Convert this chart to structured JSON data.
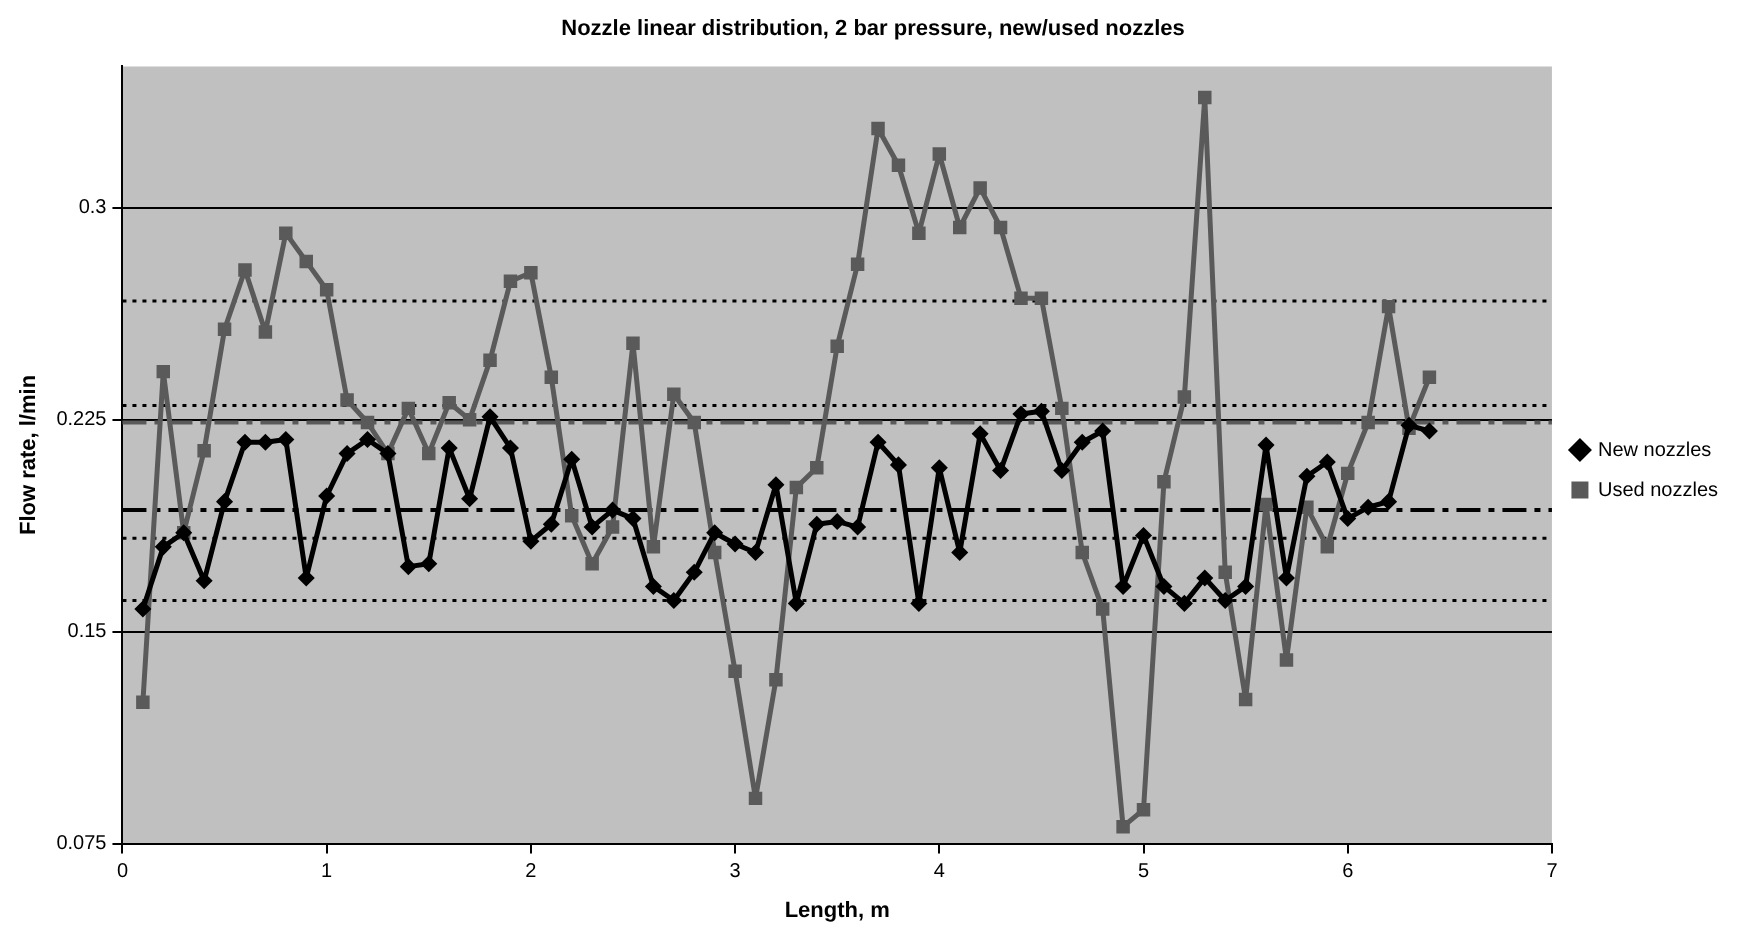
{
  "chart_data": {
    "type": "line",
    "title": "Nozzle linear distribution, 2 bar pressure, new/used nozzles",
    "xlabel": "Length, m",
    "ylabel": "Flow rate, l/min",
    "x": [
      0.1,
      0.2,
      0.3,
      0.4,
      0.5,
      0.6,
      0.7,
      0.8,
      0.9,
      1.0,
      1.1,
      1.2,
      1.3,
      1.4,
      1.5,
      1.6,
      1.7,
      1.8,
      1.9,
      2.0,
      2.1,
      2.2,
      2.3,
      2.4,
      2.5,
      2.6,
      2.7,
      2.8,
      2.9,
      3.0,
      3.1,
      3.2,
      3.3,
      3.4,
      3.5,
      3.6,
      3.7,
      3.8,
      3.9,
      4.0,
      4.1,
      4.2,
      4.3,
      4.4,
      4.5,
      4.6,
      4.7,
      4.8,
      4.9,
      5.0,
      5.1,
      5.2,
      5.3,
      5.4,
      5.5,
      5.6,
      5.7,
      5.8,
      5.9,
      6.0,
      6.1,
      6.2,
      6.3,
      6.4
    ],
    "series": [
      {
        "name": "New nozzles",
        "color": "#000000",
        "marker": "diamond",
        "values": [
          0.158,
          0.18,
          0.185,
          0.168,
          0.196,
          0.217,
          0.217,
          0.218,
          0.169,
          0.198,
          0.213,
          0.218,
          0.213,
          0.173,
          0.174,
          0.215,
          0.197,
          0.226,
          0.215,
          0.182,
          0.188,
          0.211,
          0.187,
          0.193,
          0.19,
          0.166,
          0.161,
          0.171,
          0.185,
          0.181,
          0.178,
          0.202,
          0.16,
          0.188,
          0.189,
          0.187,
          0.217,
          0.209,
          0.16,
          0.208,
          0.178,
          0.22,
          0.207,
          0.227,
          0.228,
          0.207,
          0.217,
          0.221,
          0.166,
          0.184,
          0.166,
          0.16,
          0.169,
          0.161,
          0.166,
          0.216,
          0.169,
          0.205,
          0.21,
          0.19,
          0.194,
          0.196,
          0.223,
          0.221
        ]
      },
      {
        "name": "Used nozzles",
        "color": "#5a5a5a",
        "marker": "square",
        "values": [
          0.125,
          0.242,
          0.185,
          0.214,
          0.257,
          0.278,
          0.256,
          0.291,
          0.281,
          0.271,
          0.232,
          0.224,
          0.213,
          0.229,
          0.213,
          0.231,
          0.225,
          0.246,
          0.274,
          0.277,
          0.24,
          0.191,
          0.174,
          0.187,
          0.252,
          0.18,
          0.234,
          0.224,
          0.178,
          0.136,
          0.091,
          0.133,
          0.201,
          0.208,
          0.251,
          0.28,
          0.328,
          0.315,
          0.291,
          0.319,
          0.293,
          0.307,
          0.293,
          0.268,
          0.268,
          0.229,
          0.178,
          0.158,
          0.081,
          0.087,
          0.203,
          0.233,
          0.339,
          0.171,
          0.126,
          0.195,
          0.14,
          0.194,
          0.18,
          0.206,
          0.224,
          0.265,
          0.222,
          0.24
        ]
      }
    ],
    "xlim": [
      0,
      7
    ],
    "xticks": [
      0,
      1,
      2,
      3,
      4,
      5,
      6,
      7
    ],
    "ylim": [
      0.075,
      0.35
    ],
    "yticks": [
      0.075,
      0.15,
      0.225,
      0.3
    ],
    "grid": "y",
    "legend": "right",
    "ref_lines": [
      {
        "axis": "y",
        "value": 0.193,
        "color": "#000000",
        "line_style": "dashed"
      },
      {
        "axis": "y",
        "value": 0.224,
        "color": "#5a5a5a",
        "line_style": "dashed"
      },
      {
        "axis": "y",
        "value": 0.267,
        "color": "#000000",
        "line_style": "dotted"
      },
      {
        "axis": "y",
        "value": 0.23,
        "color": "#000000",
        "line_style": "dotted"
      },
      {
        "axis": "y",
        "value": 0.183,
        "color": "#000000",
        "line_style": "dotted"
      },
      {
        "axis": "y",
        "value": 0.161,
        "color": "#000000",
        "line_style": "dotted"
      }
    ]
  }
}
